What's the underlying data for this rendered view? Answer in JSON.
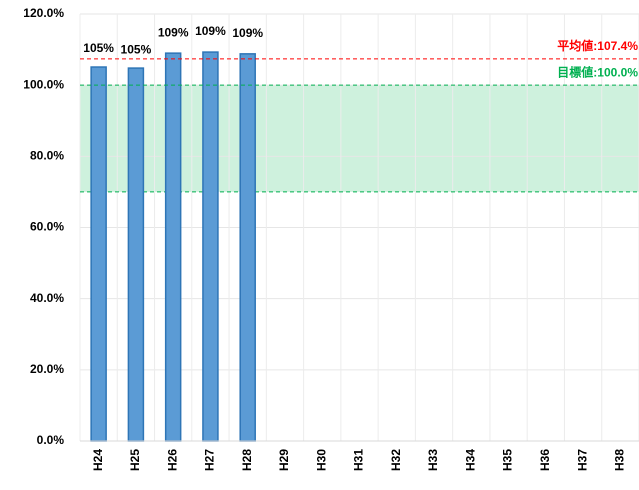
{
  "chart_data": {
    "type": "bar",
    "categories": [
      "H24",
      "H25",
      "H26",
      "H27",
      "H28",
      "H29",
      "H30",
      "H31",
      "H32",
      "H33",
      "H34",
      "H35",
      "H36",
      "H37",
      "H38"
    ],
    "values": [
      105.1,
      104.8,
      109.0,
      109.3,
      108.8,
      null,
      null,
      null,
      null,
      null,
      null,
      null,
      null,
      null,
      null
    ],
    "value_labels": [
      "105%",
      "105%",
      "109%",
      "109%",
      "109%",
      null,
      null,
      null,
      null,
      null,
      null,
      null,
      null,
      null,
      null
    ],
    "color": "#5b9bd5",
    "ylim": [
      0,
      120
    ],
    "yticks": [
      {
        "value": 0,
        "label": "0.0%"
      },
      {
        "value": 20,
        "label": "20.0%"
      },
      {
        "value": 40,
        "label": "40.0%"
      },
      {
        "value": 60,
        "label": "60.0%"
      },
      {
        "value": 80,
        "label": "80.0%"
      },
      {
        "value": 100,
        "label": "100.0%"
      },
      {
        "value": 120,
        "label": "120.0%"
      }
    ],
    "grid": true,
    "reference_lines": [
      {
        "label": "平均値:107.4%",
        "value": 107.4,
        "color": "#ff0000"
      },
      {
        "label": "目標値:100.0%",
        "value": 100,
        "color": "#00b050"
      }
    ],
    "target_band": [
      70,
      100
    ],
    "band_color": "#c6efd7"
  }
}
